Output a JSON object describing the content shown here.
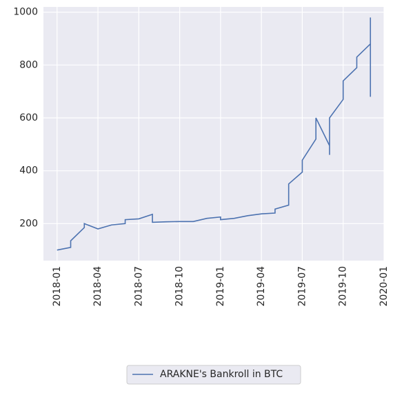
{
  "chart_data": {
    "type": "line",
    "x": [
      "2018-01",
      "2018-02",
      "2018-02",
      "2018-03",
      "2018-03",
      "2018-04",
      "2018-05",
      "2018-06",
      "2018-06",
      "2018-07",
      "2018-08",
      "2018-08",
      "2018-09",
      "2018-10",
      "2018-11",
      "2018-12",
      "2019-01",
      "2019-01",
      "2019-02",
      "2019-03",
      "2019-04",
      "2019-05",
      "2019-05",
      "2019-06",
      "2019-06",
      "2019-07",
      "2019-07",
      "2019-08",
      "2019-08",
      "2019-09",
      "2019-09",
      "2019-09",
      "2019-10",
      "2019-10",
      "2019-11",
      "2019-11",
      "2019-12",
      "2019-12",
      "2019-12"
    ],
    "series": [
      {
        "name": "ARAKNE's Bankroll in BTC",
        "color": "#4c72b0",
        "values": [
          100,
          110,
          135,
          185,
          200,
          180,
          195,
          200,
          215,
          218,
          235,
          205,
          207,
          208,
          208,
          220,
          225,
          215,
          220,
          230,
          237,
          240,
          255,
          270,
          350,
          395,
          440,
          520,
          600,
          495,
          460,
          600,
          670,
          740,
          790,
          830,
          880,
          980,
          680
        ]
      }
    ],
    "xlim": [
      "2017-12",
      "2020-01"
    ],
    "xticks": [
      "2018-01",
      "2018-04",
      "2018-07",
      "2018-10",
      "2019-01",
      "2019-04",
      "2019-07",
      "2019-10",
      "2020-01"
    ],
    "ylim": [
      60,
      1020
    ],
    "yticks": [
      200,
      400,
      600,
      800,
      1000
    ],
    "grid": true,
    "legend": "bottom"
  }
}
